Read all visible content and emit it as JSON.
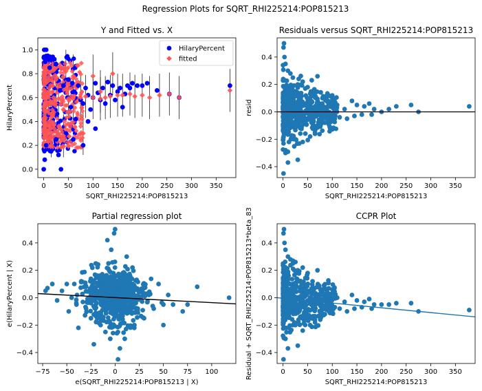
{
  "figure": {
    "suptitle": "Regression Plots for SQRT_RHI225214:POP815213"
  },
  "colors": {
    "scatter_blue": "#1f77b4",
    "hilary_blue": "#0000ff",
    "fitted_red": "#ff5555",
    "line_black": "#000000"
  },
  "chart_data": [
    {
      "id": "y-vs-fitted",
      "type": "scatter",
      "title": "Y and Fitted vs. X",
      "xlabel": "SQRT_RHI225214:POP815213",
      "ylabel": "HilaryPercent",
      "xlim": [
        -12,
        390
      ],
      "ylim": [
        -0.07,
        1.1
      ],
      "xticks": [
        0,
        50,
        100,
        150,
        200,
        250,
        300,
        350
      ],
      "yticks": [
        0.0,
        0.2,
        0.4,
        0.6,
        0.8,
        1.0
      ],
      "ytick_labels": [
        "0.0",
        "0.2",
        "0.4",
        "0.6",
        "0.8",
        "1.0"
      ],
      "legend": {
        "position": "top-right",
        "entries": [
          "HilaryPercent",
          "fitted"
        ]
      },
      "series": [
        {
          "name": "HilaryPercent",
          "marker": "circle",
          "points": [
            [
              0,
              0.0
            ],
            [
              35,
              0.0
            ],
            [
              2,
              0.08
            ],
            [
              5,
              0.2
            ],
            [
              1,
              1.0
            ],
            [
              5,
              1.0
            ],
            [
              8,
              0.95
            ],
            [
              3,
              0.9
            ],
            [
              12,
              0.85
            ],
            [
              20,
              0.92
            ],
            [
              25,
              0.88
            ],
            [
              28,
              0.74
            ],
            [
              33,
              0.66
            ],
            [
              40,
              0.7
            ],
            [
              48,
              0.6
            ],
            [
              50,
              0.75
            ],
            [
              55,
              0.52
            ],
            [
              58,
              0.72
            ],
            [
              62,
              0.65
            ],
            [
              70,
              0.7
            ],
            [
              75,
              0.58
            ],
            [
              80,
              0.55
            ],
            [
              85,
              0.68
            ],
            [
              90,
              0.62
            ],
            [
              95,
              0.5
            ],
            [
              100,
              0.6
            ],
            [
              105,
              0.72
            ],
            [
              110,
              0.64
            ],
            [
              115,
              0.58
            ],
            [
              120,
              0.68
            ],
            [
              125,
              0.55
            ],
            [
              130,
              0.73
            ],
            [
              135,
              0.62
            ],
            [
              140,
              0.7
            ],
            [
              145,
              0.58
            ],
            [
              150,
              0.65
            ],
            [
              155,
              0.68
            ],
            [
              160,
              0.52
            ],
            [
              165,
              0.63
            ],
            [
              170,
              0.7
            ],
            [
              175,
              0.68
            ],
            [
              180,
              0.72
            ],
            [
              190,
              0.7
            ],
            [
              200,
              0.7
            ],
            [
              210,
              0.72
            ],
            [
              230,
              0.66
            ],
            [
              255,
              0.63
            ],
            [
              275,
              0.6
            ],
            [
              378,
              0.7
            ],
            [
              80,
              0.2
            ],
            [
              30,
              0.12
            ],
            [
              15,
              0.15
            ],
            [
              45,
              0.3
            ],
            [
              60,
              0.25
            ],
            [
              90,
              0.4
            ],
            [
              105,
              0.34
            ],
            [
              65,
              0.42
            ],
            [
              25,
              0.25
            ]
          ]
        },
        {
          "name": "fitted",
          "marker": "diamond",
          "points": [
            [
              0,
              0.6
            ],
            [
              5,
              0.6
            ],
            [
              10,
              0.6
            ],
            [
              20,
              0.6
            ],
            [
              30,
              0.59
            ],
            [
              50,
              0.59
            ],
            [
              60,
              0.6
            ],
            [
              75,
              0.6
            ],
            [
              85,
              0.61
            ],
            [
              100,
              0.6
            ],
            [
              115,
              0.59
            ],
            [
              125,
              0.6
            ],
            [
              135,
              0.61
            ],
            [
              140,
              0.8
            ],
            [
              150,
              0.62
            ],
            [
              160,
              0.62
            ],
            [
              175,
              0.63
            ],
            [
              185,
              0.61
            ],
            [
              200,
              0.62
            ],
            [
              215,
              0.6
            ],
            [
              235,
              0.62
            ],
            [
              255,
              0.63
            ],
            [
              275,
              0.6
            ],
            [
              378,
              0.66
            ],
            [
              15,
              0.2
            ],
            [
              30,
              0.3
            ],
            [
              40,
              0.28
            ],
            [
              80,
              0.3
            ],
            [
              25,
              0.75
            ],
            [
              45,
              0.82
            ],
            [
              60,
              0.78
            ],
            [
              100,
              0.78
            ],
            [
              115,
              0.65
            ]
          ]
        }
      ]
    },
    {
      "id": "residuals",
      "type": "scatter",
      "title": "Residuals versus SQRT_RHI225214:POP815213",
      "xlabel": "SQRT_RHI225214:POP815213",
      "ylabel": "resid",
      "xlim": [
        -12,
        390
      ],
      "ylim": [
        -0.48,
        0.54
      ],
      "xticks": [
        0,
        50,
        100,
        150,
        200,
        250,
        300,
        350
      ],
      "yticks": [
        -0.4,
        -0.2,
        0.0,
        0.2,
        0.4
      ],
      "ytick_labels": [
        "-0.4",
        "-0.2",
        "0.0",
        "0.2",
        "0.4"
      ],
      "hline": 0,
      "series": [
        {
          "name": "",
          "points": [
            [
              2,
              0.5
            ],
            [
              1,
              0.47
            ],
            [
              3,
              0.4
            ],
            [
              5,
              0.35
            ],
            [
              10,
              0.3
            ],
            [
              15,
              0.28
            ],
            [
              20,
              0.25
            ],
            [
              30,
              0.2
            ],
            [
              40,
              0.22
            ],
            [
              50,
              0.18
            ],
            [
              60,
              0.15
            ],
            [
              70,
              0.26
            ],
            [
              80,
              0.1
            ],
            [
              90,
              0.08
            ],
            [
              100,
              0.12
            ],
            [
              110,
              0.05
            ],
            [
              125,
              0.02
            ],
            [
              140,
              0.08
            ],
            [
              150,
              0.05
            ],
            [
              165,
              0.04
            ],
            [
              175,
              0.06
            ],
            [
              185,
              0.02
            ],
            [
              200,
              0.0
            ],
            [
              215,
              0.02
            ],
            [
              230,
              0.04
            ],
            [
              260,
              0.05
            ],
            [
              275,
              0.0
            ],
            [
              378,
              0.04
            ],
            [
              1,
              -0.45
            ],
            [
              5,
              -0.3
            ],
            [
              10,
              -0.37
            ],
            [
              25,
              -0.2
            ],
            [
              30,
              -0.35
            ],
            [
              40,
              -0.22
            ],
            [
              55,
              -0.18
            ],
            [
              65,
              -0.15
            ],
            [
              75,
              -0.1
            ],
            [
              85,
              -0.08
            ],
            [
              100,
              -0.06
            ],
            [
              115,
              -0.04
            ],
            [
              130,
              -0.05
            ],
            [
              145,
              -0.03
            ],
            [
              160,
              -0.02
            ],
            [
              180,
              -0.02
            ],
            [
              12,
              -0.22
            ],
            [
              20,
              -0.18
            ],
            [
              35,
              -0.12
            ],
            [
              45,
              -0.05
            ]
          ]
        }
      ]
    },
    {
      "id": "partial-regression",
      "type": "scatter",
      "title": "Partial regression plot",
      "xlabel": "e(SQRT_RHI225214:POP815213 | X)",
      "ylabel": "e(HilaryPercent | X)",
      "xlim": [
        -80,
        125
      ],
      "ylim": [
        -0.48,
        0.54
      ],
      "xticks": [
        -75,
        -50,
        -25,
        0,
        25,
        50,
        75,
        100
      ],
      "yticks": [
        -0.4,
        -0.2,
        0.0,
        0.2,
        0.4
      ],
      "ytick_labels": [
        "-0.4",
        "-0.2",
        "0.0",
        "0.2",
        "0.4"
      ],
      "fit_line": {
        "x": [
          -80,
          125
        ],
        "y": [
          0.03,
          -0.045
        ]
      },
      "series": [
        {
          "name": "",
          "points": [
            [
              0,
              0.5
            ],
            [
              -1,
              0.47
            ],
            [
              -8,
              0.42
            ],
            [
              -4,
              0.35
            ],
            [
              12,
              0.3
            ],
            [
              -20,
              0.25
            ],
            [
              18,
              0.22
            ],
            [
              -35,
              0.12
            ],
            [
              -50,
              0.1
            ],
            [
              -72,
              0.05
            ],
            [
              -70,
              0.07
            ],
            [
              -65,
              0.1
            ],
            [
              -55,
              0.05
            ],
            [
              -45,
              0.0
            ],
            [
              -40,
              -0.05
            ],
            [
              -30,
              -0.08
            ],
            [
              -25,
              -0.15
            ],
            [
              -15,
              -0.2
            ],
            [
              -10,
              -0.25
            ],
            [
              -5,
              -0.3
            ],
            [
              5,
              -0.37
            ],
            [
              3,
              -0.45
            ],
            [
              10,
              -0.3
            ],
            [
              20,
              -0.2
            ],
            [
              30,
              -0.15
            ],
            [
              40,
              -0.08
            ],
            [
              50,
              -0.05
            ],
            [
              55,
              0.02
            ],
            [
              60,
              -0.05
            ],
            [
              70,
              -0.1
            ],
            [
              75,
              -0.05
            ],
            [
              85,
              0.08
            ],
            [
              118,
              0.0
            ],
            [
              -48,
              -0.1
            ],
            [
              -38,
              -0.22
            ],
            [
              -22,
              -0.34
            ],
            [
              15,
              0.12
            ],
            [
              25,
              0.05
            ],
            [
              35,
              0.02
            ],
            [
              45,
              0.1
            ],
            [
              -60,
              -0.02
            ],
            [
              -30,
              0.08
            ],
            [
              50,
              -0.2
            ],
            [
              8,
              0.18
            ],
            [
              -12,
              0.15
            ]
          ]
        }
      ]
    },
    {
      "id": "ccpr",
      "type": "scatter",
      "title": "CCPR Plot",
      "xlabel": "SQRT_RHI225214:POP815213",
      "ylabel": "Residual + SQRT_RHI225214:POP815213*beta_83",
      "xlim": [
        -12,
        390
      ],
      "ylim": [
        -0.48,
        0.54
      ],
      "xticks": [
        0,
        50,
        100,
        150,
        200,
        250,
        300,
        350
      ],
      "yticks": [
        -0.4,
        -0.2,
        0.0,
        0.2,
        0.4
      ],
      "ytick_labels": [
        "-0.4",
        "-0.2",
        "0.0",
        "0.2",
        "0.4"
      ],
      "fit_line": {
        "x": [
          -12,
          390
        ],
        "y": [
          0.0,
          -0.14
        ]
      },
      "series": [
        {
          "name": "",
          "points": [
            [
              2,
              0.5
            ],
            [
              1,
              0.47
            ],
            [
              3,
              0.4
            ],
            [
              5,
              0.35
            ],
            [
              10,
              0.3
            ],
            [
              15,
              0.28
            ],
            [
              20,
              0.25
            ],
            [
              30,
              0.2
            ],
            [
              40,
              0.22
            ],
            [
              50,
              0.18
            ],
            [
              60,
              0.12
            ],
            [
              70,
              0.2
            ],
            [
              80,
              0.06
            ],
            [
              90,
              0.04
            ],
            [
              100,
              0.06
            ],
            [
              110,
              0.0
            ],
            [
              125,
              -0.03
            ],
            [
              140,
              0.02
            ],
            [
              150,
              -0.02
            ],
            [
              165,
              -0.03
            ],
            [
              175,
              -0.01
            ],
            [
              185,
              -0.05
            ],
            [
              200,
              -0.05
            ],
            [
              215,
              -0.05
            ],
            [
              230,
              -0.04
            ],
            [
              260,
              -0.04
            ],
            [
              275,
              -0.1
            ],
            [
              378,
              -0.09
            ],
            [
              1,
              -0.45
            ],
            [
              5,
              -0.3
            ],
            [
              10,
              -0.37
            ],
            [
              25,
              -0.2
            ],
            [
              30,
              -0.35
            ],
            [
              40,
              -0.24
            ],
            [
              55,
              -0.2
            ],
            [
              65,
              -0.18
            ],
            [
              75,
              -0.14
            ],
            [
              85,
              -0.12
            ],
            [
              100,
              -0.1
            ],
            [
              115,
              -0.08
            ],
            [
              130,
              -0.1
            ],
            [
              145,
              -0.08
            ],
            [
              160,
              -0.07
            ],
            [
              180,
              -0.08
            ],
            [
              12,
              -0.22
            ],
            [
              20,
              -0.2
            ],
            [
              35,
              -0.14
            ],
            [
              45,
              -0.08
            ]
          ]
        }
      ]
    }
  ]
}
